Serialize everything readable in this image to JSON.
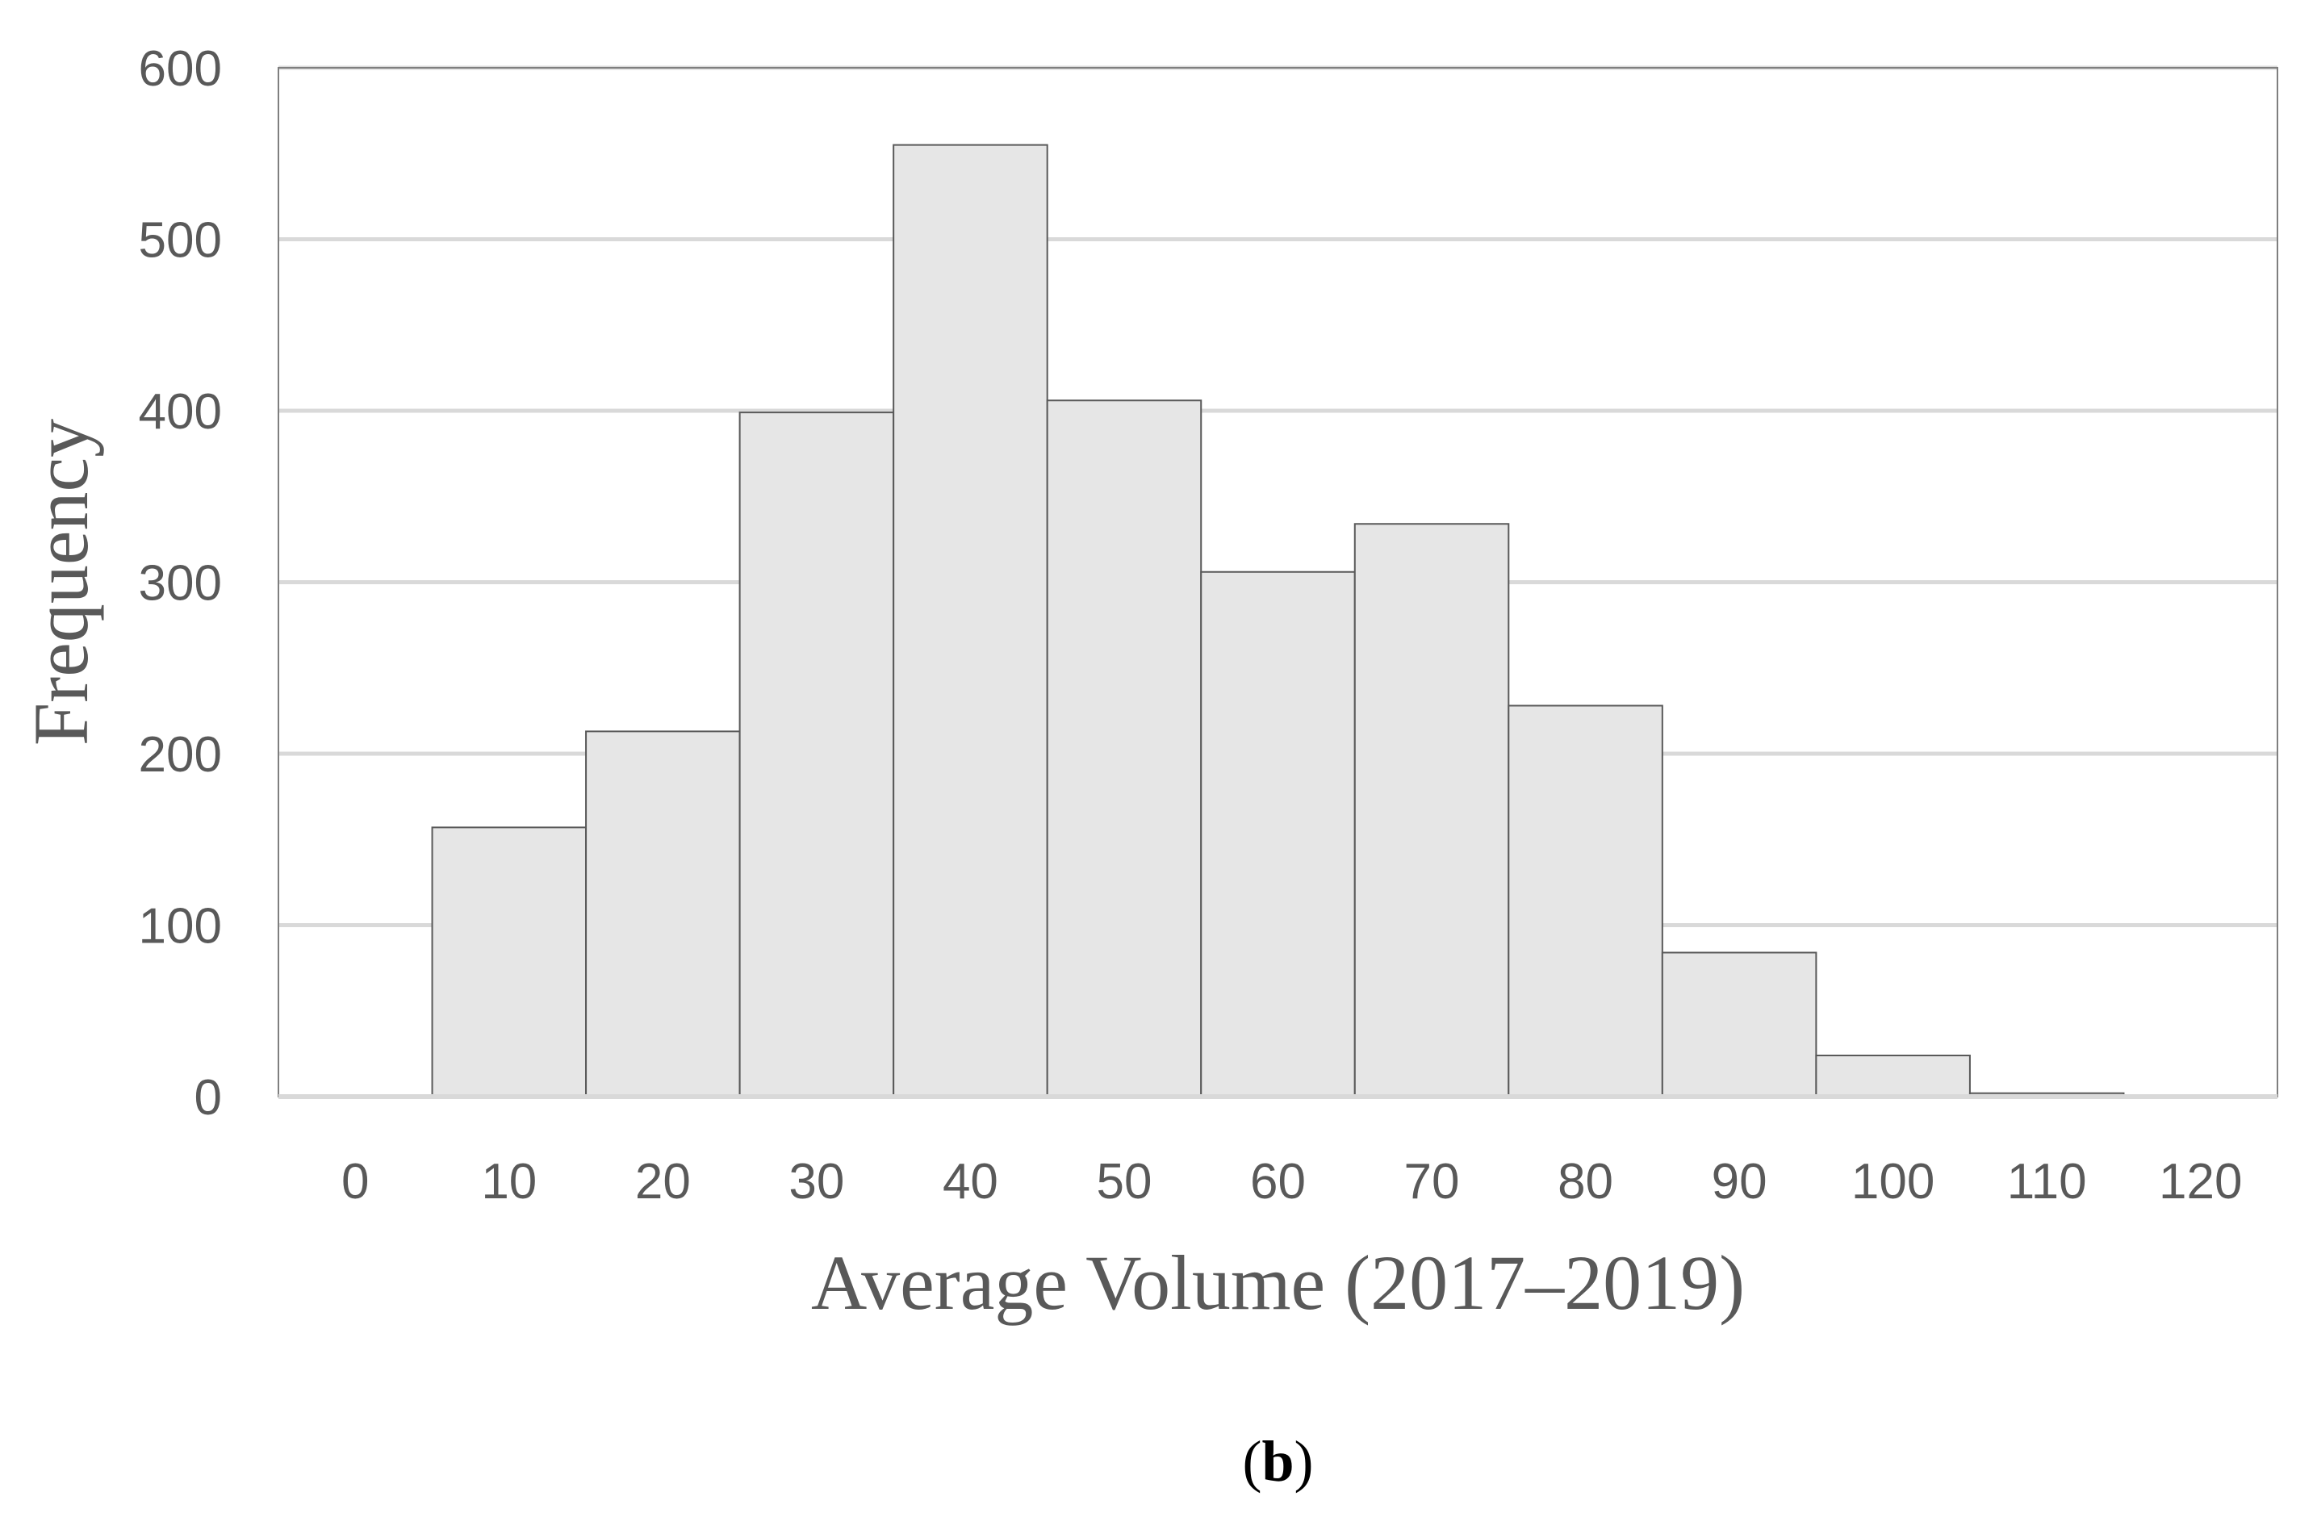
{
  "chart_data": {
    "type": "bar",
    "categories": [
      "0",
      "10",
      "20",
      "30",
      "40",
      "50",
      "60",
      "70",
      "80",
      "90",
      "100",
      "110",
      "120"
    ],
    "values": [
      0,
      157,
      213,
      399,
      555,
      406,
      306,
      334,
      228,
      84,
      24,
      2,
      0
    ],
    "title": "",
    "xlabel": "Average Volume (2017–2019)",
    "ylabel": "Frequency",
    "ylim": [
      0,
      600
    ],
    "yticks": [
      0,
      100,
      200,
      300,
      400,
      500,
      600
    ],
    "grid": true,
    "legend": "none",
    "bar_color": "#e6e6e6",
    "bar_edge_color": "#595959",
    "grid_color": "#d9d9d9",
    "frame_color": "#7f7f7f",
    "panel_label": "(b)"
  }
}
